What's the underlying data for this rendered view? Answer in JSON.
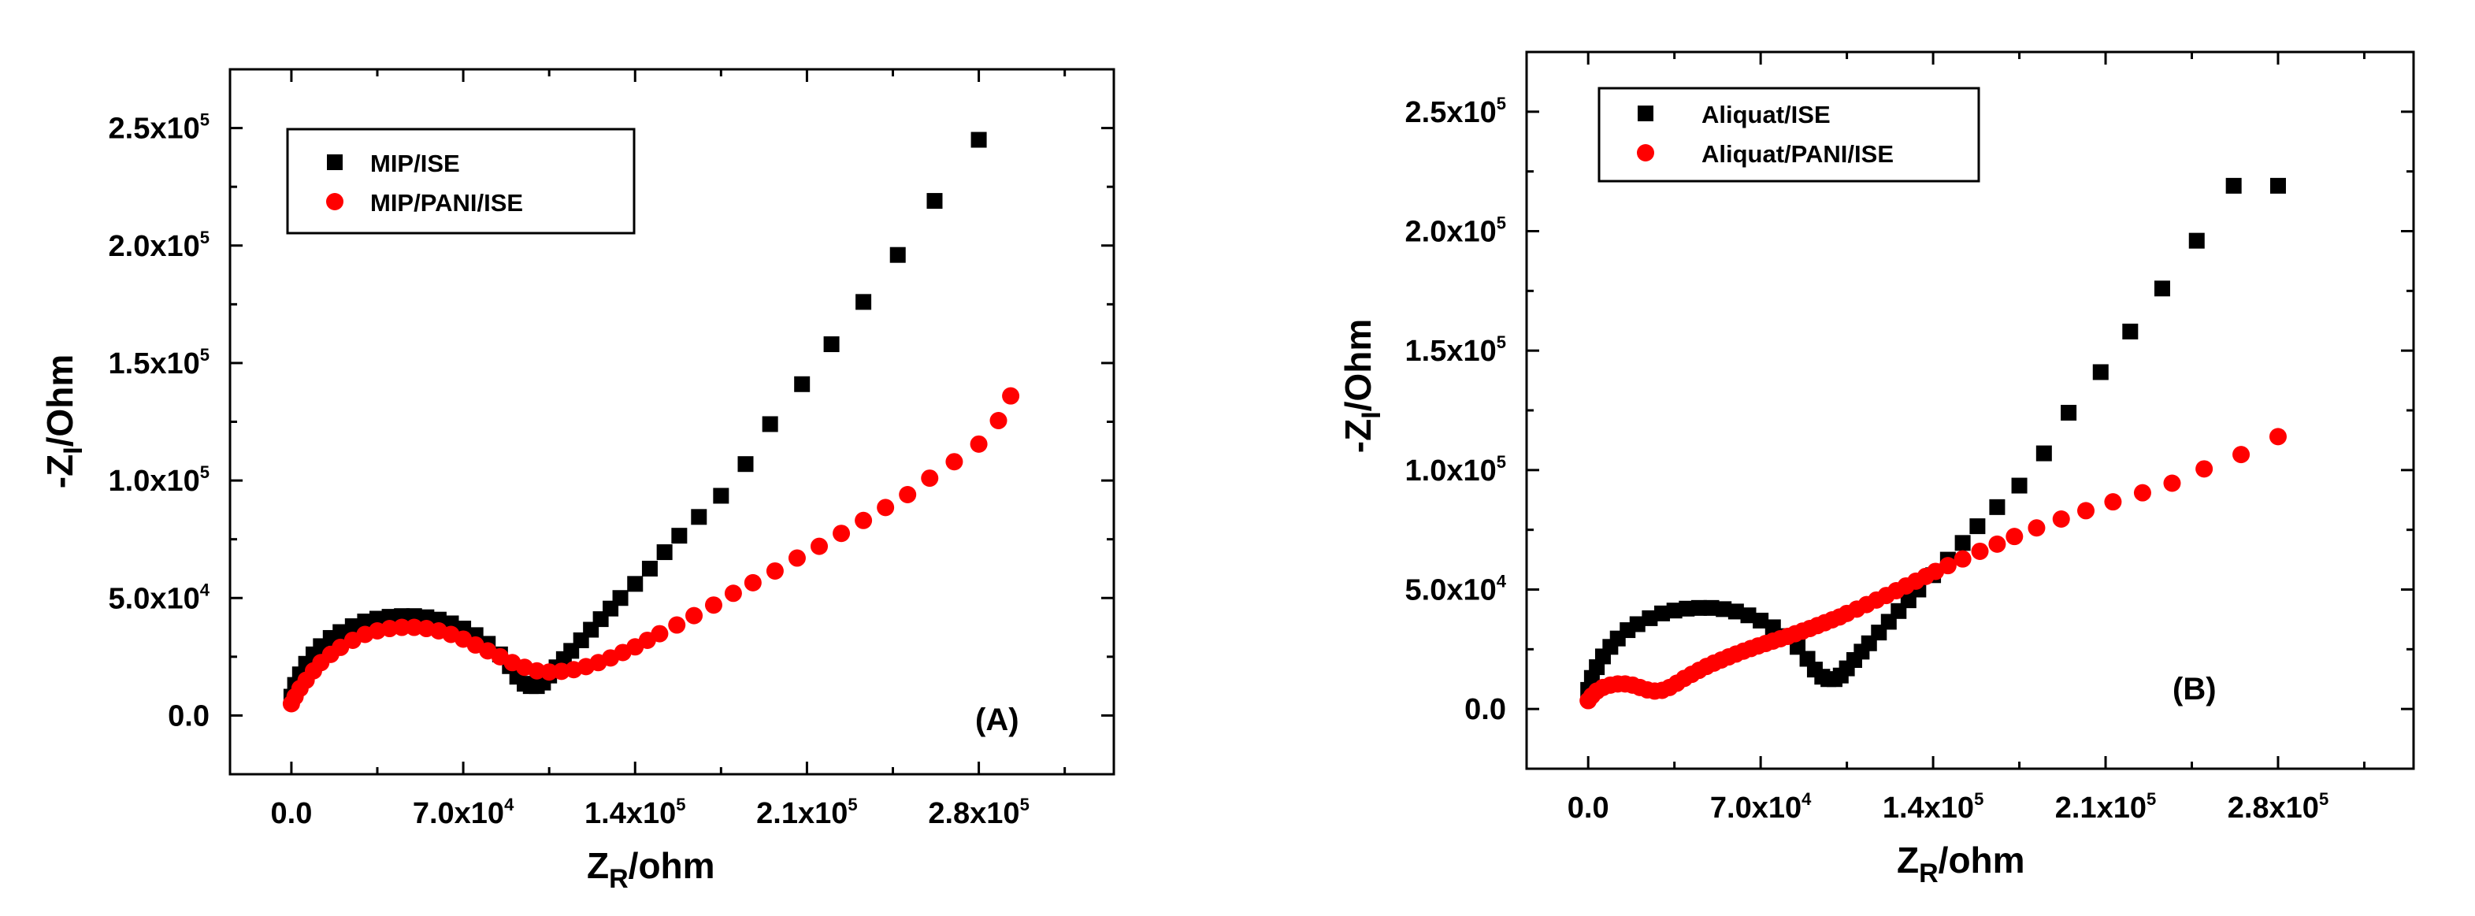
{
  "chart_data": [
    {
      "type": "scatter",
      "panel_label": "(A)",
      "xlabel": "Z_R/ohm",
      "ylabel": "-Z_I/Ohm",
      "xlim": [
        -25000,
        335000
      ],
      "ylim": [
        -25000,
        275000
      ],
      "x_ticks": [
        {
          "mant": "0.0",
          "exp": ""
        },
        {
          "mant": "7.0x10",
          "exp": "4"
        },
        {
          "mant": "1.4x10",
          "exp": "5"
        },
        {
          "mant": "2.1x10",
          "exp": "5"
        },
        {
          "mant": "2.8x10",
          "exp": "5"
        }
      ],
      "x_tick_values": [
        0,
        70000,
        140000,
        210000,
        280000
      ],
      "y_ticks": [
        {
          "mant": "0.0",
          "exp": ""
        },
        {
          "mant": "5.0x10",
          "exp": "4"
        },
        {
          "mant": "1.0x10",
          "exp": "5"
        },
        {
          "mant": "1.5x10",
          "exp": "5"
        },
        {
          "mant": "2.0x10",
          "exp": "5"
        },
        {
          "mant": "2.5x10",
          "exp": "5"
        }
      ],
      "y_tick_values": [
        0,
        50000,
        100000,
        150000,
        200000,
        250000
      ],
      "legend": "top-left",
      "series": [
        {
          "name": "MIP/ISE",
          "marker": "square",
          "color": "#000000",
          "points": [
            [
              0,
              8000
            ],
            [
              1500,
              13000
            ],
            [
              3500,
              17500
            ],
            [
              6000,
              22000
            ],
            [
              9000,
              26000
            ],
            [
              12000,
              29500
            ],
            [
              16000,
              33000
            ],
            [
              20000,
              35500
            ],
            [
              25000,
              38000
            ],
            [
              30000,
              40000
            ],
            [
              35000,
              41200
            ],
            [
              40000,
              42000
            ],
            [
              45000,
              42300
            ],
            [
              50000,
              42300
            ],
            [
              55000,
              41800
            ],
            [
              60000,
              40800
            ],
            [
              65000,
              39200
            ],
            [
              70000,
              37000
            ],
            [
              75000,
              34200
            ],
            [
              80000,
              30500
            ],
            [
              85000,
              26000
            ],
            [
              89000,
              21000
            ],
            [
              92000,
              16500
            ],
            [
              95000,
              13500
            ],
            [
              97500,
              12500
            ],
            [
              100000,
              12500
            ],
            [
              102500,
              14000
            ],
            [
              105000,
              17000
            ],
            [
              108000,
              20500
            ],
            [
              111000,
              24000
            ],
            [
              114000,
              27500
            ],
            [
              118000,
              32000
            ],
            [
              122000,
              36500
            ],
            [
              126000,
              41000
            ],
            [
              130000,
              45500
            ],
            [
              134000,
              50000
            ],
            [
              140000,
              56000
            ],
            [
              146000,
              62500
            ],
            [
              152000,
              69500
            ],
            [
              158000,
              76500
            ],
            [
              166000,
              84500
            ],
            [
              175000,
              93500
            ],
            [
              185000,
              107000
            ],
            [
              195000,
              124000
            ],
            [
              208000,
              141000
            ],
            [
              220000,
              158000
            ],
            [
              233000,
              176000
            ],
            [
              247000,
              196000
            ],
            [
              262000,
              219000
            ],
            [
              280000,
              245000
            ]
          ]
        },
        {
          "name": "MIP/PANI/ISE",
          "marker": "circle",
          "color": "#ff0000",
          "points": [
            [
              0,
              5000
            ],
            [
              1500,
              8000
            ],
            [
              3500,
              11500
            ],
            [
              6000,
              15000
            ],
            [
              9000,
              19000
            ],
            [
              12000,
              22500
            ],
            [
              16000,
              26000
            ],
            [
              20000,
              29000
            ],
            [
              25000,
              32000
            ],
            [
              30000,
              34500
            ],
            [
              35000,
              36000
            ],
            [
              40000,
              37000
            ],
            [
              45000,
              37500
            ],
            [
              50000,
              37500
            ],
            [
              55000,
              37000
            ],
            [
              60000,
              36000
            ],
            [
              65000,
              34500
            ],
            [
              70000,
              32500
            ],
            [
              75000,
              30000
            ],
            [
              80000,
              27500
            ],
            [
              85000,
              25000
            ],
            [
              90000,
              22500
            ],
            [
              95000,
              20500
            ],
            [
              100000,
              19000
            ],
            [
              105000,
              18500
            ],
            [
              110000,
              18800
            ],
            [
              115000,
              19500
            ],
            [
              120000,
              20800
            ],
            [
              125000,
              22500
            ],
            [
              130000,
              24500
            ],
            [
              135000,
              26800
            ],
            [
              140000,
              29200
            ],
            [
              145000,
              32000
            ],
            [
              150000,
              34800
            ],
            [
              157000,
              38500
            ],
            [
              164000,
              42500
            ],
            [
              172000,
              47000
            ],
            [
              180000,
              52000
            ],
            [
              188000,
              56500
            ],
            [
              197000,
              61500
            ],
            [
              206000,
              67000
            ],
            [
              215000,
              72000
            ],
            [
              224000,
              77500
            ],
            [
              233000,
              83000
            ],
            [
              242000,
              88500
            ],
            [
              251000,
              94000
            ],
            [
              260000,
              101000
            ],
            [
              270000,
              108000
            ],
            [
              280000,
              115500
            ],
            [
              288000,
              125500
            ],
            [
              293000,
              136000
            ]
          ]
        }
      ]
    },
    {
      "type": "scatter",
      "panel_label": "(B)",
      "xlabel": "Z_R/ohm",
      "ylabel": "-Z_I/Ohm",
      "xlim": [
        -25000,
        335000
      ],
      "ylim": [
        -25000,
        275000
      ],
      "x_ticks": [
        {
          "mant": "0.0",
          "exp": ""
        },
        {
          "mant": "7.0x10",
          "exp": "4"
        },
        {
          "mant": "1.4x10",
          "exp": "5"
        },
        {
          "mant": "2.1x10",
          "exp": "5"
        },
        {
          "mant": "2.8x10",
          "exp": "5"
        }
      ],
      "x_tick_values": [
        0,
        70000,
        140000,
        210000,
        280000
      ],
      "y_ticks": [
        {
          "mant": "0.0",
          "exp": ""
        },
        {
          "mant": "5.0x10",
          "exp": "4"
        },
        {
          "mant": "1.0x10",
          "exp": "5"
        },
        {
          "mant": "1.5x10",
          "exp": "5"
        },
        {
          "mant": "2.0x10",
          "exp": "5"
        },
        {
          "mant": "2.5x10",
          "exp": "5"
        }
      ],
      "y_tick_values": [
        0,
        50000,
        100000,
        150000,
        200000,
        250000
      ],
      "legend": "top-left",
      "series": [
        {
          "name": "Aliquat/ISE",
          "marker": "square",
          "color": "#000000",
          "points": [
            [
              0,
              8000
            ],
            [
              1500,
              13000
            ],
            [
              3500,
              17500
            ],
            [
              6000,
              22000
            ],
            [
              9000,
              26000
            ],
            [
              12000,
              29500
            ],
            [
              16000,
              33000
            ],
            [
              20000,
              35500
            ],
            [
              25000,
              38000
            ],
            [
              30000,
              40000
            ],
            [
              35000,
              41200
            ],
            [
              40000,
              42000
            ],
            [
              45000,
              42300
            ],
            [
              50000,
              42300
            ],
            [
              55000,
              41800
            ],
            [
              60000,
              40800
            ],
            [
              65000,
              39200
            ],
            [
              70000,
              37000
            ],
            [
              75000,
              34200
            ],
            [
              80000,
              30500
            ],
            [
              85000,
              26000
            ],
            [
              89000,
              21000
            ],
            [
              92000,
              16500
            ],
            [
              95000,
              13500
            ],
            [
              97500,
              12500
            ],
            [
              100000,
              12500
            ],
            [
              102500,
              14000
            ],
            [
              105000,
              17000
            ],
            [
              108000,
              20500
            ],
            [
              111000,
              24000
            ],
            [
              114000,
              27500
            ],
            [
              118000,
              32000
            ],
            [
              122000,
              36500
            ],
            [
              126000,
              41000
            ],
            [
              130000,
              45500
            ],
            [
              134000,
              50000
            ],
            [
              140000,
              56000
            ],
            [
              146000,
              62500
            ],
            [
              152000,
              69500
            ],
            [
              158000,
              76500
            ],
            [
              166000,
              84500
            ],
            [
              175000,
              93500
            ],
            [
              185000,
              107000
            ],
            [
              195000,
              124000
            ],
            [
              208000,
              141000
            ],
            [
              220000,
              158000
            ],
            [
              233000,
              176000
            ],
            [
              247000,
              196000
            ],
            [
              262000,
              219000
            ],
            [
              280000,
              219000
            ]
          ]
        },
        {
          "name": "Aliquat/PANI/ISE",
          "marker": "circle",
          "color": "#ff0000",
          "points": [
            [
              0,
              3500
            ],
            [
              1500,
              5500
            ],
            [
              3500,
              7500
            ],
            [
              6000,
              9000
            ],
            [
              9000,
              10000
            ],
            [
              12000,
              10500
            ],
            [
              15000,
              10500
            ],
            [
              18000,
              10000
            ],
            [
              21000,
              9000
            ],
            [
              24000,
              8000
            ],
            [
              27000,
              7500
            ],
            [
              30000,
              7800
            ],
            [
              33000,
              9000
            ],
            [
              36000,
              10800
            ],
            [
              39000,
              12800
            ],
            [
              42000,
              14500
            ],
            [
              45000,
              16200
            ],
            [
              48000,
              17800
            ],
            [
              51000,
              19200
            ],
            [
              54000,
              20500
            ],
            [
              57000,
              21800
            ],
            [
              60000,
              23000
            ],
            [
              63000,
              24200
            ],
            [
              66000,
              25300
            ],
            [
              69000,
              26400
            ],
            [
              72000,
              27400
            ],
            [
              75000,
              28400
            ],
            [
              78000,
              29400
            ],
            [
              81000,
              30400
            ],
            [
              84000,
              31500
            ],
            [
              87000,
              32600
            ],
            [
              90000,
              33700
            ],
            [
              93000,
              34900
            ],
            [
              96000,
              36100
            ],
            [
              99000,
              37300
            ],
            [
              102000,
              38500
            ],
            [
              105000,
              40000
            ],
            [
              109000,
              41800
            ],
            [
              113000,
              43700
            ],
            [
              117000,
              45600
            ],
            [
              121000,
              47500
            ],
            [
              125000,
              49500
            ],
            [
              129000,
              51500
            ],
            [
              133000,
              53500
            ],
            [
              137000,
              55500
            ],
            [
              141000,
              57600
            ],
            [
              146000,
              60000
            ],
            [
              152000,
              62800
            ],
            [
              159000,
              66000
            ],
            [
              166000,
              69000
            ],
            [
              173000,
              72200
            ],
            [
              182000,
              75800
            ],
            [
              192000,
              79500
            ],
            [
              202000,
              83000
            ],
            [
              213000,
              86700
            ],
            [
              225000,
              90500
            ],
            [
              237000,
              94500
            ],
            [
              250000,
              100500
            ],
            [
              265000,
              106500
            ],
            [
              280000,
              114000
            ]
          ]
        }
      ]
    }
  ]
}
